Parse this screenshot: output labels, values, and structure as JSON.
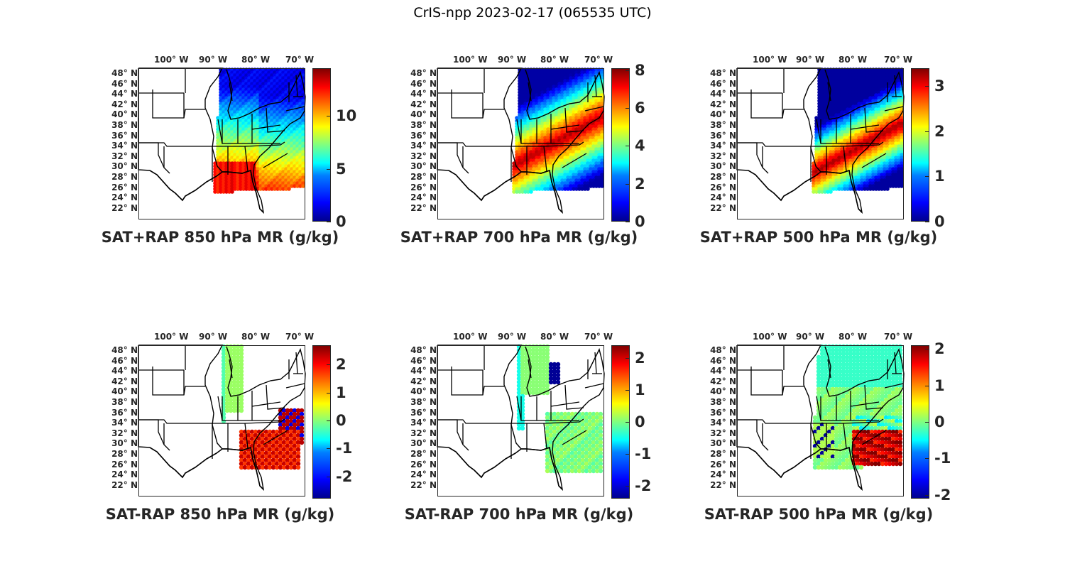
{
  "title": "CrIS-npp 2023-02-17 (065535 UTC)",
  "map": {
    "lon_labels": [
      "100° W",
      "90° W",
      "80° W",
      "70° W"
    ],
    "lat_labels": [
      "48° N",
      "46° N",
      "44° N",
      "42° N",
      "40° N",
      "38° N",
      "36° N",
      "34° N",
      "32° N",
      "30° N",
      "28° N",
      "26° N",
      "24° N",
      "22° N"
    ]
  },
  "colormap": "jet",
  "panels": [
    {
      "id": "p1",
      "title": "SAT+RAP 850 hPa MR (g/kg)",
      "cbar_ticks": [
        "0",
        "5",
        "10"
      ],
      "cbar_values": [
        0,
        5,
        10
      ],
      "cbar_range": [
        0,
        14.5
      ],
      "field": "total_850"
    },
    {
      "id": "p2",
      "title": "SAT+RAP 700 hPa MR (g/kg)",
      "cbar_ticks": [
        "0",
        "2",
        "4",
        "6",
        "8"
      ],
      "cbar_values": [
        0,
        2,
        4,
        6,
        8
      ],
      "cbar_range": [
        0,
        8.1
      ],
      "field": "total_700"
    },
    {
      "id": "p3",
      "title": "SAT+RAP 500 hPa MR (g/kg)",
      "cbar_ticks": [
        "0",
        "1",
        "2",
        "3"
      ],
      "cbar_values": [
        0,
        1,
        2,
        3
      ],
      "cbar_range": [
        0,
        3.4
      ],
      "field": "total_500"
    },
    {
      "id": "p4",
      "title": "SAT-RAP 850 hPa MR (g/kg)",
      "cbar_ticks": [
        "-2",
        "-1",
        "0",
        "1",
        "2"
      ],
      "cbar_values": [
        -2,
        -1,
        0,
        1,
        2
      ],
      "cbar_range": [
        -2.8,
        2.7
      ],
      "field": "diff_850"
    },
    {
      "id": "p5",
      "title": "SAT-RAP 700 hPa MR (g/kg)",
      "cbar_ticks": [
        "-2",
        "-1",
        "0",
        "1",
        "2"
      ],
      "cbar_values": [
        -2,
        -1,
        0,
        1,
        2
      ],
      "cbar_range": [
        -2.4,
        2.4
      ],
      "field": "diff_700"
    },
    {
      "id": "p6",
      "title": "SAT-RAP 500 hPa MR (g/kg)",
      "cbar_ticks": [
        "-2",
        "-1",
        "0",
        "1",
        "2"
      ],
      "cbar_values": [
        -2,
        -1,
        0,
        1,
        2
      ],
      "cbar_range": [
        -2.1,
        2.1
      ],
      "field": "diff_500"
    }
  ]
}
